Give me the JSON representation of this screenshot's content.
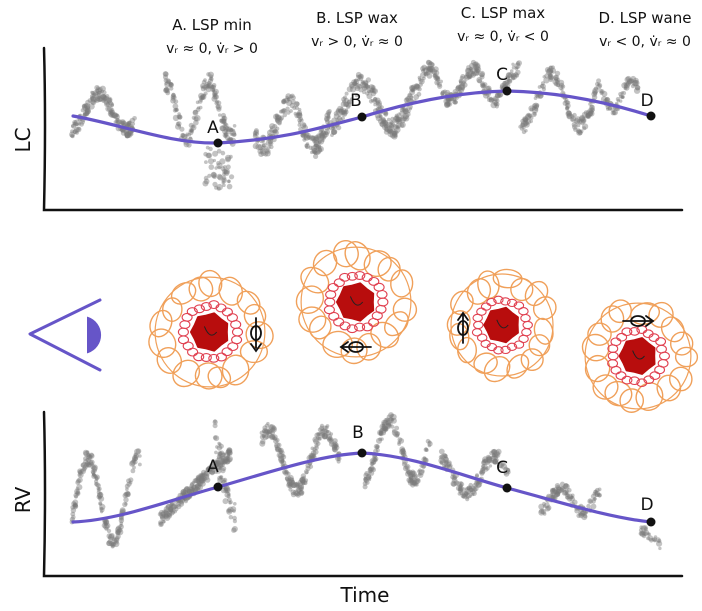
{
  "phases": [
    {
      "key": "A",
      "title": "A. LSP min",
      "condition": "vᵣ ≈ 0, v̇ᵣ > 0"
    },
    {
      "key": "B",
      "title": "B. LSP wax",
      "condition": "vᵣ > 0, v̇ᵣ ≈ 0"
    },
    {
      "key": "C",
      "title": "C. LSP max",
      "condition": "vᵣ ≈ 0, v̇ᵣ < 0"
    },
    {
      "key": "D",
      "title": "D. LSP wane",
      "condition": "vᵣ < 0, v̇ᵣ ≈ 0"
    }
  ],
  "lc_panel": {
    "ylabel": "LC",
    "points": [
      {
        "label": "A"
      },
      {
        "label": "B"
      },
      {
        "label": "C"
      },
      {
        "label": "D"
      }
    ]
  },
  "rv_panel": {
    "ylabel": "RV",
    "xlabel": "Time",
    "points": [
      {
        "label": "A"
      },
      {
        "label": "B"
      },
      {
        "label": "C"
      },
      {
        "label": "D"
      }
    ]
  },
  "colors": {
    "curve": "#6655c8",
    "scatter": "#7a7a7a",
    "outer_rings": "#f0a05a",
    "inner_rings": "#e04050",
    "core": "#b80d0d",
    "eye": "#6655c8"
  },
  "icons": [
    "eye-icon",
    "rotation-arrow-icon"
  ]
}
